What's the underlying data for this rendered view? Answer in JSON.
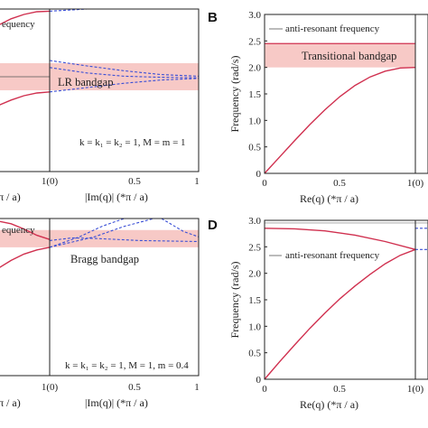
{
  "colors": {
    "real_branch": "#d0304f",
    "imag_branch": "#3a4fd6",
    "bandgap_fill": "#f7c9c6",
    "axis": "#222222",
    "line_marker": "#555555"
  },
  "chart_data": [
    {
      "id": "A",
      "type": "line",
      "panel_letter": "",
      "ylim": [
        0,
        3.0
      ],
      "xlim": [
        0,
        1
      ],
      "xlabel": "|Im(q)| (*π / a)",
      "xlabel_left_fragment": "π / a)",
      "x_ticks": [
        "1(0)",
        "0.5",
        "1"
      ],
      "legend_fragment": "equency",
      "band_label": "LR bandgap",
      "bandgap": [
        1.5,
        2.0
      ],
      "params_text": "k = k₁ = k₂ = 1, M = m = 1",
      "real_left": [
        {
          "x": [
            0.0,
            0.25,
            0.5,
            0.75,
            1.0
          ],
          "y": [
            2.7,
            2.82,
            2.9,
            2.95,
            2.96
          ]
        },
        {
          "x": [
            0.0,
            0.25,
            0.5,
            0.75,
            1.0
          ],
          "y": [
            1.22,
            1.32,
            1.4,
            1.45,
            1.47
          ]
        }
      ],
      "imag_right": [
        {
          "x": [
            0.0,
            0.25,
            0.5,
            0.75,
            1.0
          ],
          "y": [
            2.96,
            3.05,
            3.25,
            3.5,
            3.8
          ]
        },
        {
          "x": [
            0.0,
            0.25,
            0.5,
            0.75,
            1.0
          ],
          "y": [
            2.05,
            1.95,
            1.86,
            1.79,
            1.76
          ]
        },
        {
          "x": [
            0.0,
            0.25,
            0.5,
            0.75,
            1.0
          ],
          "y": [
            1.92,
            1.82,
            1.76,
            1.74,
            1.73
          ]
        },
        {
          "x": [
            0.0,
            0.25,
            0.5,
            0.75,
            1.0
          ],
          "y": [
            1.47,
            1.55,
            1.63,
            1.69,
            1.72
          ]
        }
      ],
      "reference_line_y": 1.75
    },
    {
      "id": "B",
      "type": "line",
      "panel_letter": "B",
      "ylim": [
        0,
        3.0
      ],
      "xlim": [
        0,
        1
      ],
      "ylabel": "Frequency (rad/s)",
      "xlabel": "Re(q) (*π / a)",
      "y_ticks": [
        "0",
        "0.5",
        "1.0",
        "1.5",
        "2.0",
        "2.5",
        "3.0"
      ],
      "x_ticks": [
        "0",
        "0.5",
        "1(0)"
      ],
      "legend_label": "anti-resonant frequency",
      "band_label": "Transitional bandgap",
      "bandgap": [
        2.0,
        2.45
      ],
      "antiresonant_y": 2.45,
      "series": [
        {
          "x": [
            0.0,
            0.1,
            0.2,
            0.3,
            0.4,
            0.5,
            0.6,
            0.7,
            0.8,
            0.9,
            1.0
          ],
          "y": [
            0.0,
            0.31,
            0.62,
            0.92,
            1.2,
            1.45,
            1.66,
            1.82,
            1.93,
            1.99,
            2.0
          ]
        }
      ]
    },
    {
      "id": "C",
      "type": "line",
      "panel_letter": "",
      "ylim": [
        0,
        3.0
      ],
      "xlim": [
        0,
        1
      ],
      "xlabel": "|Im(q)| (*π / a)",
      "xlabel_left_fragment": "π / a)",
      "x_ticks": [
        "1(0)",
        "0.5",
        "1"
      ],
      "legend_fragment": "equency",
      "band_label": "Bragg bandgap",
      "bandgap": [
        2.45,
        2.78
      ],
      "params_text": "k = k₁ = k₂ = 1, M = 1, m = 0.4",
      "real_left": [
        {
          "x": [
            0.0,
            0.25,
            0.5,
            0.75,
            1.0
          ],
          "y": [
            2.95,
            2.9,
            2.8,
            2.68,
            2.6
          ]
        },
        {
          "x": [
            0.0,
            0.25,
            0.5,
            0.75,
            1.0
          ],
          "y": [
            2.05,
            2.2,
            2.32,
            2.4,
            2.45
          ]
        }
      ],
      "imag_right": [
        {
          "x": [
            0.0,
            0.2,
            0.35,
            0.5,
            0.6,
            0.75,
            0.9,
            1.0
          ],
          "y": [
            2.45,
            2.65,
            2.85,
            3.15,
            3.25,
            3.0,
            2.75,
            2.65
          ]
        },
        {
          "x": [
            0.0,
            0.15,
            0.3,
            0.5,
            0.7,
            1.0
          ],
          "y": [
            2.45,
            2.55,
            2.65,
            2.85,
            3.15,
            3.4
          ]
        },
        {
          "x": [
            0.0,
            0.15,
            0.3,
            0.6,
            1.0
          ],
          "y": [
            2.58,
            2.63,
            2.62,
            2.58,
            2.56
          ]
        }
      ],
      "reference_line_y": 3.0
    },
    {
      "id": "D",
      "type": "line",
      "panel_letter": "D",
      "ylim": [
        0,
        3.0
      ],
      "xlim": [
        0,
        1
      ],
      "ylabel": "Frequency (rad/s)",
      "xlabel": "Re(q) (*π / a)",
      "y_ticks": [
        "0",
        "0.5",
        "1.0",
        "1.5",
        "2.0",
        "2.5",
        "3.0"
      ],
      "x_ticks": [
        "0",
        "0.5",
        "1(0)"
      ],
      "legend_label": "anti-resonant frequency",
      "antiresonant_y": 2.95,
      "series": [
        {
          "x": [
            0.0,
            0.1,
            0.2,
            0.3,
            0.4,
            0.5,
            0.6,
            0.7,
            0.8,
            0.9,
            1.0
          ],
          "y": [
            0.0,
            0.33,
            0.65,
            0.96,
            1.25,
            1.52,
            1.76,
            1.98,
            2.18,
            2.34,
            2.45
          ]
        },
        {
          "x": [
            0.0,
            0.2,
            0.4,
            0.6,
            0.8,
            1.0
          ],
          "y": [
            2.85,
            2.84,
            2.8,
            2.72,
            2.6,
            2.45
          ]
        }
      ],
      "imag_right_stub": [
        2.85,
        2.45
      ]
    }
  ]
}
